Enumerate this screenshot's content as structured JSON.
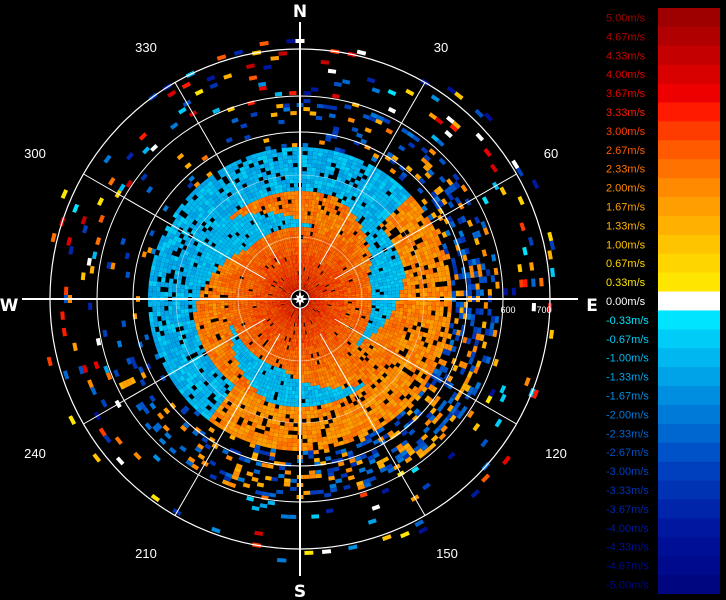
{
  "chart_data": {
    "type": "heatmap",
    "projection": "polar",
    "cardinals": [
      "N",
      "E",
      "S",
      "W"
    ],
    "bearing_labels": [
      30,
      60,
      120,
      150,
      210,
      240,
      300,
      330
    ],
    "range_labels": [
      "600",
      "700"
    ],
    "grid": true,
    "legend_position": "right",
    "colorscale": {
      "unit": "m/s",
      "labels": [
        "5.00m/s",
        "4.67m/s",
        "4.33m/s",
        "4.00m/s",
        "3.67m/s",
        "3.33m/s",
        "3.00m/s",
        "2.67m/s",
        "2.33m/s",
        "2.00m/s",
        "1.67m/s",
        "1.33m/s",
        "1.00m/s",
        "0.67m/s",
        "0.33m/s",
        "0.00m/s",
        "-0.33m/s",
        "-0.67m/s",
        "-1.00m/s",
        "-1.33m/s",
        "-1.67m/s",
        "-2.00m/s",
        "-2.33m/s",
        "-2.67m/s",
        "-3.00m/s",
        "-3.33m/s",
        "-3.67m/s",
        "-4.00m/s",
        "-4.33m/s",
        "-4.67m/s",
        "-5.00m/s"
      ],
      "values": [
        5.0,
        4.67,
        4.33,
        4.0,
        3.67,
        3.33,
        3.0,
        2.67,
        2.33,
        2.0,
        1.67,
        1.33,
        1.0,
        0.67,
        0.33,
        0.0,
        -0.33,
        -0.67,
        -1.0,
        -1.33,
        -1.67,
        -2.0,
        -2.33,
        -2.67,
        -3.0,
        -3.33,
        -3.67,
        -4.0,
        -4.33,
        -4.67,
        -5.0
      ],
      "colors": [
        "#9e0000",
        "#b00000",
        "#c40000",
        "#d90000",
        "#ee0000",
        "#ff1a00",
        "#ff3c00",
        "#ff5a00",
        "#ff7200",
        "#ff8a00",
        "#ff9e00",
        "#ffb000",
        "#ffc400",
        "#ffd500",
        "#ffe600",
        "#ffffff",
        "#00e4ff",
        "#00cdf7",
        "#00b7ef",
        "#00a2e8",
        "#008ee0",
        "#007ad8",
        "#0066d0",
        "#0052c8",
        "#0040be",
        "#0032b4",
        "#0024aa",
        "#0018a0",
        "#001096",
        "#000a8c",
        "#000680"
      ]
    }
  }
}
